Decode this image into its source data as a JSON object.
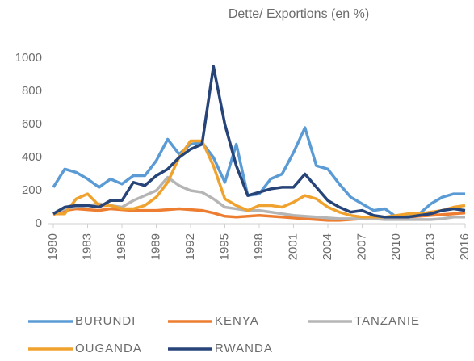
{
  "chart_data": {
    "type": "line",
    "title": "Dette/ Exportions (en %)",
    "x": [
      1980,
      1981,
      1982,
      1983,
      1984,
      1985,
      1986,
      1987,
      1988,
      1989,
      1990,
      1991,
      1992,
      1993,
      1994,
      1995,
      1996,
      1997,
      1998,
      1999,
      2000,
      2001,
      2002,
      2003,
      2004,
      2005,
      2006,
      2007,
      2008,
      2009,
      2010,
      2011,
      2012,
      2013,
      2014,
      2015,
      2016
    ],
    "xlim": [
      1980,
      2016
    ],
    "xticks": [
      1980,
      1983,
      1986,
      1989,
      1992,
      1995,
      1998,
      2001,
      2004,
      2007,
      2010,
      2013,
      2016
    ],
    "ylim": [
      0,
      1000
    ],
    "yticks": [
      0,
      200,
      400,
      600,
      800,
      1000
    ],
    "grid": false,
    "legend": "bottom",
    "series": [
      {
        "name": "BURUNDI",
        "color": "#5b9bd5",
        "values": [
          220,
          330,
          310,
          270,
          220,
          270,
          240,
          290,
          290,
          380,
          510,
          420,
          480,
          490,
          400,
          250,
          480,
          170,
          180,
          270,
          300,
          430,
          580,
          350,
          330,
          240,
          160,
          120,
          80,
          90,
          40,
          50,
          60,
          120,
          160,
          180,
          180
        ]
      },
      {
        "name": "KENYA",
        "color": "#ed7d31",
        "values": [
          55,
          80,
          90,
          85,
          80,
          90,
          85,
          80,
          80,
          80,
          85,
          90,
          85,
          80,
          65,
          45,
          40,
          45,
          50,
          45,
          40,
          35,
          30,
          25,
          20,
          20,
          25,
          30,
          30,
          35,
          35,
          40,
          45,
          50,
          55,
          60,
          65
        ]
      },
      {
        "name": "TANZANIE",
        "color": "#b5b5b5",
        "values": [
          60,
          90,
          100,
          110,
          120,
          110,
          100,
          140,
          170,
          200,
          280,
          230,
          200,
          190,
          150,
          100,
          90,
          80,
          80,
          70,
          60,
          50,
          45,
          40,
          35,
          30,
          30,
          30,
          30,
          25,
          25,
          25,
          25,
          25,
          30,
          40,
          40
        ]
      },
      {
        "name": "OUGANDA",
        "color": "#f0a22e",
        "values": [
          60,
          60,
          150,
          180,
          110,
          110,
          90,
          90,
          110,
          160,
          250,
          400,
          500,
          500,
          350,
          150,
          110,
          80,
          110,
          110,
          100,
          130,
          170,
          150,
          100,
          70,
          50,
          40,
          40,
          40,
          50,
          60,
          60,
          70,
          80,
          100,
          110
        ]
      },
      {
        "name": "RWANDA",
        "color": "#264478",
        "values": [
          60,
          100,
          110,
          110,
          100,
          140,
          140,
          250,
          230,
          290,
          330,
          400,
          450,
          480,
          950,
          600,
          350,
          170,
          190,
          210,
          220,
          220,
          300,
          220,
          140,
          100,
          70,
          80,
          50,
          40,
          40,
          40,
          50,
          60,
          80,
          90,
          80
        ]
      }
    ]
  }
}
